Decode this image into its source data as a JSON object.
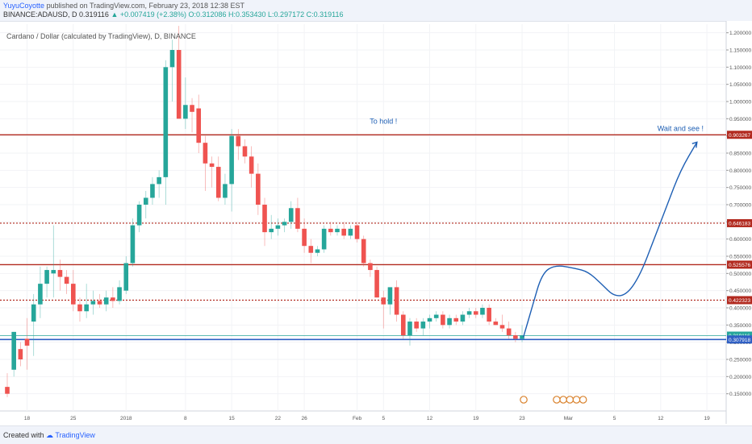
{
  "header": {
    "author": "YuyuCoyotte",
    "published": "published on TradingView.com, February 23, 2018 12:38 EST",
    "symbol": "BINANCE:ADAUSD, D",
    "price": "0.319116",
    "change": "+0.007419 (+2.38%)",
    "ohlc": "O:0.312086 H:0.353430 L:0.297172 C:0.319116"
  },
  "chart_title": "Cardano / Dollar (calculated by TradingView), D, BINANCE",
  "footer": {
    "created_with": "Created with",
    "brand": "TradingView"
  },
  "colors": {
    "up": "#26a69a",
    "down": "#ef5350",
    "level": "#b22a1f",
    "support": "#2f5fc4",
    "current": "#26a69a",
    "projection": "#1e5fb4"
  },
  "chart_data": {
    "type": "candlestick",
    "title": "Cardano / Dollar (calculated by TradingView), D, BINANCE",
    "ylim": [
      0.1,
      1.225
    ],
    "y_ticks": [
      "1.200000",
      "1.150000",
      "1.100000",
      "1.050000",
      "1.000000",
      "0.950000",
      "0.900000",
      "0.850000",
      "0.800000",
      "0.750000",
      "0.700000",
      "0.650000",
      "0.600000",
      "0.550000",
      "0.500000",
      "0.450000",
      "0.400000",
      "0.350000",
      "0.300000",
      "0.250000",
      "0.200000",
      "0.150000"
    ],
    "x_ticks": [
      "18",
      "25",
      "2018",
      "8",
      "15",
      "22",
      "26",
      "Feb",
      "5",
      "12",
      "19",
      "23",
      "Mar",
      "5",
      "12",
      "19"
    ],
    "candles": [
      {
        "o": 0.17,
        "h": 0.21,
        "l": 0.14,
        "c": 0.15
      },
      {
        "o": 0.22,
        "h": 0.33,
        "l": 0.2,
        "c": 0.33
      },
      {
        "o": 0.28,
        "h": 0.3,
        "l": 0.23,
        "c": 0.25
      },
      {
        "o": 0.31,
        "h": 0.37,
        "l": 0.22,
        "c": 0.29
      },
      {
        "o": 0.36,
        "h": 0.44,
        "l": 0.26,
        "c": 0.41
      },
      {
        "o": 0.41,
        "h": 0.52,
        "l": 0.37,
        "c": 0.47
      },
      {
        "o": 0.47,
        "h": 0.52,
        "l": 0.43,
        "c": 0.51
      },
      {
        "o": 0.5,
        "h": 0.64,
        "l": 0.43,
        "c": 0.51
      },
      {
        "o": 0.51,
        "h": 0.54,
        "l": 0.45,
        "c": 0.49
      },
      {
        "o": 0.49,
        "h": 0.51,
        "l": 0.44,
        "c": 0.47
      },
      {
        "o": 0.47,
        "h": 0.51,
        "l": 0.39,
        "c": 0.41
      },
      {
        "o": 0.41,
        "h": 0.43,
        "l": 0.36,
        "c": 0.39
      },
      {
        "o": 0.39,
        "h": 0.47,
        "l": 0.37,
        "c": 0.41
      },
      {
        "o": 0.41,
        "h": 0.45,
        "l": 0.38,
        "c": 0.42
      },
      {
        "o": 0.42,
        "h": 0.44,
        "l": 0.4,
        "c": 0.41
      },
      {
        "o": 0.41,
        "h": 0.45,
        "l": 0.39,
        "c": 0.43
      },
      {
        "o": 0.43,
        "h": 0.46,
        "l": 0.4,
        "c": 0.42
      },
      {
        "o": 0.42,
        "h": 0.48,
        "l": 0.41,
        "c": 0.46
      },
      {
        "o": 0.45,
        "h": 0.55,
        "l": 0.44,
        "c": 0.53
      },
      {
        "o": 0.53,
        "h": 0.66,
        "l": 0.52,
        "c": 0.64
      },
      {
        "o": 0.64,
        "h": 0.71,
        "l": 0.62,
        "c": 0.7
      },
      {
        "o": 0.7,
        "h": 0.74,
        "l": 0.66,
        "c": 0.72
      },
      {
        "o": 0.72,
        "h": 0.78,
        "l": 0.7,
        "c": 0.76
      },
      {
        "o": 0.76,
        "h": 0.8,
        "l": 0.72,
        "c": 0.78
      },
      {
        "o": 0.78,
        "h": 1.12,
        "l": 0.7,
        "c": 1.1
      },
      {
        "o": 1.1,
        "h": 1.18,
        "l": 1.0,
        "c": 1.15
      },
      {
        "o": 1.15,
        "h": 1.22,
        "l": 0.96,
        "c": 0.95
      },
      {
        "o": 0.95,
        "h": 1.07,
        "l": 0.92,
        "c": 0.99
      },
      {
        "o": 0.99,
        "h": 1.01,
        "l": 0.91,
        "c": 0.97
      },
      {
        "o": 0.98,
        "h": 1.02,
        "l": 0.85,
        "c": 0.88
      },
      {
        "o": 0.88,
        "h": 0.9,
        "l": 0.74,
        "c": 0.82
      },
      {
        "o": 0.82,
        "h": 0.84,
        "l": 0.75,
        "c": 0.81
      },
      {
        "o": 0.81,
        "h": 0.84,
        "l": 0.71,
        "c": 0.72
      },
      {
        "o": 0.72,
        "h": 0.79,
        "l": 0.7,
        "c": 0.76
      },
      {
        "o": 0.76,
        "h": 0.92,
        "l": 0.68,
        "c": 0.9
      },
      {
        "o": 0.9,
        "h": 0.92,
        "l": 0.83,
        "c": 0.87
      },
      {
        "o": 0.87,
        "h": 0.89,
        "l": 0.82,
        "c": 0.84
      },
      {
        "o": 0.84,
        "h": 0.87,
        "l": 0.75,
        "c": 0.79
      },
      {
        "o": 0.79,
        "h": 0.82,
        "l": 0.67,
        "c": 0.7
      },
      {
        "o": 0.7,
        "h": 0.72,
        "l": 0.58,
        "c": 0.62
      },
      {
        "o": 0.62,
        "h": 0.67,
        "l": 0.6,
        "c": 0.63
      },
      {
        "o": 0.63,
        "h": 0.66,
        "l": 0.61,
        "c": 0.64
      },
      {
        "o": 0.64,
        "h": 0.66,
        "l": 0.62,
        "c": 0.65
      },
      {
        "o": 0.65,
        "h": 0.71,
        "l": 0.63,
        "c": 0.69
      },
      {
        "o": 0.69,
        "h": 0.72,
        "l": 0.62,
        "c": 0.63
      },
      {
        "o": 0.63,
        "h": 0.66,
        "l": 0.56,
        "c": 0.58
      },
      {
        "o": 0.58,
        "h": 0.6,
        "l": 0.53,
        "c": 0.56
      },
      {
        "o": 0.56,
        "h": 0.58,
        "l": 0.55,
        "c": 0.57
      },
      {
        "o": 0.57,
        "h": 0.64,
        "l": 0.56,
        "c": 0.63
      },
      {
        "o": 0.63,
        "h": 0.65,
        "l": 0.61,
        "c": 0.62
      },
      {
        "o": 0.62,
        "h": 0.64,
        "l": 0.61,
        "c": 0.63
      },
      {
        "o": 0.63,
        "h": 0.65,
        "l": 0.6,
        "c": 0.61
      },
      {
        "o": 0.61,
        "h": 0.64,
        "l": 0.6,
        "c": 0.63
      },
      {
        "o": 0.64,
        "h": 0.65,
        "l": 0.59,
        "c": 0.6
      },
      {
        "o": 0.6,
        "h": 0.61,
        "l": 0.52,
        "c": 0.53
      },
      {
        "o": 0.53,
        "h": 0.54,
        "l": 0.49,
        "c": 0.51
      },
      {
        "o": 0.51,
        "h": 0.52,
        "l": 0.43,
        "c": 0.43
      },
      {
        "o": 0.43,
        "h": 0.45,
        "l": 0.34,
        "c": 0.41
      },
      {
        "o": 0.41,
        "h": 0.45,
        "l": 0.38,
        "c": 0.46
      },
      {
        "o": 0.46,
        "h": 0.48,
        "l": 0.36,
        "c": 0.38
      },
      {
        "o": 0.38,
        "h": 0.39,
        "l": 0.31,
        "c": 0.32
      },
      {
        "o": 0.32,
        "h": 0.37,
        "l": 0.29,
        "c": 0.36
      },
      {
        "o": 0.36,
        "h": 0.37,
        "l": 0.33,
        "c": 0.34
      },
      {
        "o": 0.34,
        "h": 0.37,
        "l": 0.32,
        "c": 0.36
      },
      {
        "o": 0.36,
        "h": 0.38,
        "l": 0.34,
        "c": 0.37
      },
      {
        "o": 0.37,
        "h": 0.39,
        "l": 0.36,
        "c": 0.38
      },
      {
        "o": 0.38,
        "h": 0.39,
        "l": 0.34,
        "c": 0.35
      },
      {
        "o": 0.35,
        "h": 0.38,
        "l": 0.34,
        "c": 0.37
      },
      {
        "o": 0.37,
        "h": 0.38,
        "l": 0.35,
        "c": 0.36
      },
      {
        "o": 0.36,
        "h": 0.39,
        "l": 0.35,
        "c": 0.38
      },
      {
        "o": 0.38,
        "h": 0.4,
        "l": 0.37,
        "c": 0.39
      },
      {
        "o": 0.39,
        "h": 0.4,
        "l": 0.37,
        "c": 0.38
      },
      {
        "o": 0.38,
        "h": 0.41,
        "l": 0.37,
        "c": 0.4
      },
      {
        "o": 0.4,
        "h": 0.41,
        "l": 0.35,
        "c": 0.36
      },
      {
        "o": 0.36,
        "h": 0.37,
        "l": 0.35,
        "c": 0.35
      },
      {
        "o": 0.35,
        "h": 0.38,
        "l": 0.33,
        "c": 0.34
      },
      {
        "o": 0.34,
        "h": 0.36,
        "l": 0.31,
        "c": 0.32
      },
      {
        "o": 0.32,
        "h": 0.33,
        "l": 0.3,
        "c": 0.31
      },
      {
        "o": 0.31,
        "h": 0.35,
        "l": 0.3,
        "c": 0.32
      }
    ],
    "levels": [
      {
        "price": 0.903267,
        "label": "0.903267",
        "style": "solid"
      },
      {
        "price": 0.646183,
        "label": "0.646183",
        "style": "dotted"
      },
      {
        "price": 0.525576,
        "label": "0.525576",
        "style": "solid"
      },
      {
        "price": 0.422323,
        "label": "0.422323",
        "style": "dotted"
      },
      {
        "price": 0.319116,
        "label": "0.319116",
        "style": "current"
      },
      {
        "price": 0.307918,
        "label": "0.307918",
        "style": "support"
      }
    ],
    "projection": [
      {
        "i": 78.2,
        "p": 0.315
      },
      {
        "i": 79.5,
        "p": 0.4
      },
      {
        "i": 81,
        "p": 0.5
      },
      {
        "i": 83,
        "p": 0.525
      },
      {
        "i": 86,
        "p": 0.515
      },
      {
        "i": 88,
        "p": 0.505
      },
      {
        "i": 90,
        "p": 0.47
      },
      {
        "i": 92,
        "p": 0.432
      },
      {
        "i": 94,
        "p": 0.44
      },
      {
        "i": 96,
        "p": 0.5
      },
      {
        "i": 98,
        "p": 0.6
      },
      {
        "i": 100,
        "p": 0.7
      },
      {
        "i": 102,
        "p": 0.8
      },
      {
        "i": 104.5,
        "p": 0.882
      }
    ],
    "annotations": [
      {
        "text": "To hold !",
        "i": 57,
        "p": 0.935
      },
      {
        "text": "Wait and see !",
        "i": 102,
        "p": 0.915
      }
    ]
  }
}
